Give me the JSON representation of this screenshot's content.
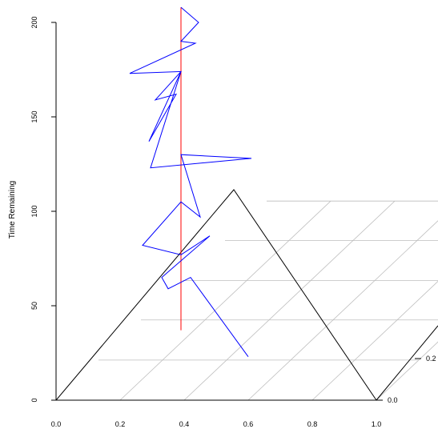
{
  "chart_data": {
    "type": "line",
    "title": "",
    "xlabel": "",
    "ylabel": "Time Remaining",
    "x_ticks": [
      "0.0",
      "0.2",
      "0.4",
      "0.6",
      "0.8",
      "1.0"
    ],
    "y_ticks": [
      "0",
      "50",
      "100",
      "150",
      "200"
    ],
    "depth_ticks": [
      "0.0",
      "0.2"
    ],
    "xlim": [
      0,
      1
    ],
    "ylim": [
      0,
      200
    ],
    "colors": {
      "path": "#0000ff",
      "median_line": "#ff0000",
      "triangle": "#000000",
      "floor_grid": "#bebebe",
      "axes": "#000000"
    },
    "median_line": {
      "x": 0.39,
      "y_start": 37,
      "y_end": 208
    },
    "series": [
      {
        "points": [
          {
            "x": 0.39,
            "y": 208
          },
          {
            "x": 0.445,
            "y": 200
          },
          {
            "x": 0.39,
            "y": 190
          },
          {
            "x": 0.435,
            "y": 189
          },
          {
            "x": 0.23,
            "y": 173
          },
          {
            "x": 0.39,
            "y": 174
          },
          {
            "x": 0.31,
            "y": 159
          },
          {
            "x": 0.375,
            "y": 162
          },
          {
            "x": 0.29,
            "y": 137
          },
          {
            "x": 0.39,
            "y": 174
          },
          {
            "x": 0.295,
            "y": 123
          },
          {
            "x": 0.61,
            "y": 128
          },
          {
            "x": 0.39,
            "y": 130
          },
          {
            "x": 0.45,
            "y": 97
          },
          {
            "x": 0.39,
            "y": 105
          },
          {
            "x": 0.27,
            "y": 82
          },
          {
            "x": 0.39,
            "y": 77
          },
          {
            "x": 0.48,
            "y": 87
          },
          {
            "x": 0.33,
            "y": 65
          },
          {
            "x": 0.35,
            "y": 59
          },
          {
            "x": 0.42,
            "y": 65
          },
          {
            "x": 0.6,
            "y": 23
          }
        ]
      }
    ]
  }
}
